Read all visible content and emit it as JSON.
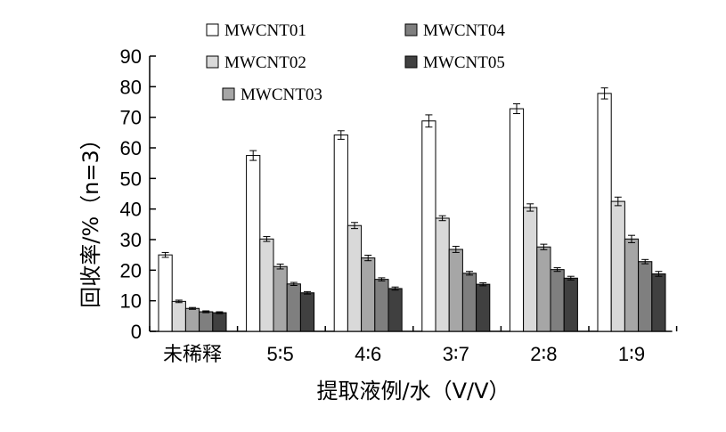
{
  "chart_data": {
    "type": "bar",
    "xlabel": "提取液例/水（V/V）",
    "ylabel": "回收率/%（n=3）",
    "ylim": [
      0,
      90
    ],
    "yticks": [
      "0",
      "10",
      "20",
      "30",
      "40",
      "50",
      "60",
      "70",
      "80",
      "90"
    ],
    "categories": [
      "未稀释",
      "5∶5",
      "4∶6",
      "3∶7",
      "2∶8",
      "1∶9"
    ],
    "grid": false,
    "legend_position": "top",
    "series": [
      {
        "name": "MWCNT01",
        "color": "#ffffff",
        "values": [
          25.0,
          57.5,
          64.2,
          68.8,
          72.8,
          77.8
        ],
        "errors": [
          0.8,
          1.6,
          1.4,
          2.0,
          1.6,
          1.8
        ]
      },
      {
        "name": "MWCNT02",
        "color": "#d9d9d9",
        "values": [
          9.8,
          30.2,
          34.6,
          37.0,
          40.5,
          42.5
        ],
        "errors": [
          0.4,
          0.8,
          1.0,
          0.8,
          1.2,
          1.4
        ]
      },
      {
        "name": "MWCNT03",
        "color": "#a6a6a6",
        "values": [
          7.5,
          21.2,
          24.0,
          26.8,
          27.6,
          30.2
        ],
        "errors": [
          0.3,
          0.8,
          0.9,
          1.0,
          0.9,
          1.2
        ]
      },
      {
        "name": "MWCNT04",
        "color": "#7f7f7f",
        "values": [
          6.4,
          15.5,
          17.0,
          19.0,
          20.2,
          22.8
        ],
        "errors": [
          0.3,
          0.5,
          0.5,
          0.6,
          0.6,
          0.7
        ]
      },
      {
        "name": "MWCNT05",
        "color": "#404040",
        "values": [
          6.1,
          12.6,
          14.0,
          15.4,
          17.4,
          18.8
        ],
        "errors": [
          0.3,
          0.4,
          0.5,
          0.5,
          0.6,
          0.8
        ]
      }
    ]
  }
}
